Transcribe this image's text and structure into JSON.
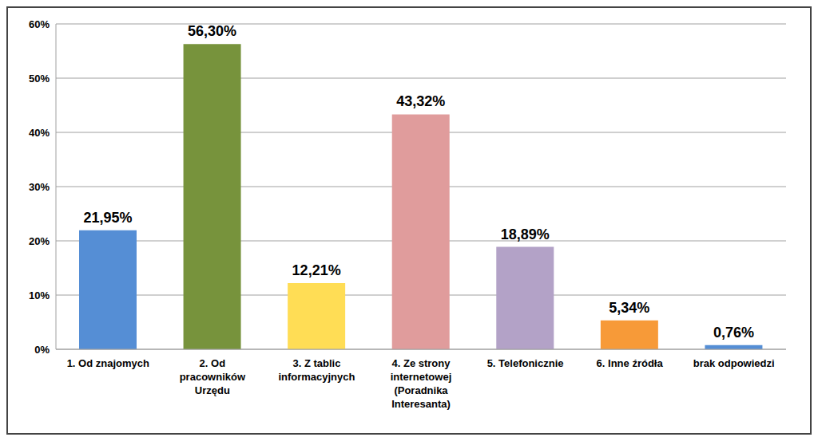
{
  "chart_data": {
    "type": "bar",
    "categories": [
      "1. Od znajomych",
      "2. Od pracowników Urzędu",
      "3. Z tablic informacyjnych",
      "4. Ze strony internetowej (Poradnika Interesanta)",
      "5. Telefonicznie",
      "6. Inne źródła",
      "brak odpowiedzi"
    ],
    "values": [
      21.95,
      56.3,
      12.21,
      43.32,
      18.89,
      5.34,
      0.76
    ],
    "value_labels": [
      "21,95%",
      "56,30%",
      "12,21%",
      "43,32%",
      "18,89%",
      "5,34%",
      "0,76%"
    ],
    "data_labels": true,
    "colors": [
      "#558ed5",
      "#77933c",
      "#ffdd55",
      "#e09c9c",
      "#b3a2c7",
      "#f79a38",
      "#558ed5"
    ],
    "ylim": [
      0,
      60
    ],
    "yticks": [
      {
        "value": 0,
        "label": "0%"
      },
      {
        "value": 10,
        "label": "10%"
      },
      {
        "value": 20,
        "label": "20%"
      },
      {
        "value": 30,
        "label": "30%"
      },
      {
        "value": 40,
        "label": "40%"
      },
      {
        "value": 50,
        "label": "50%"
      },
      {
        "value": 60,
        "label": "60%"
      }
    ],
    "grid": true
  }
}
